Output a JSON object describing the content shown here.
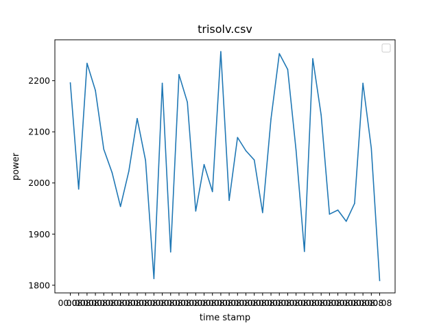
{
  "chart_data": {
    "type": "line",
    "title": "trisolv.csv",
    "xlabel": "time stamp",
    "ylabel": "power",
    "ylim": [
      1785,
      2280
    ],
    "yticks": [
      1800,
      1900,
      2000,
      2100,
      2200
    ],
    "grid": false,
    "legend": "top-right",
    "xtick_labels": [
      "00:08",
      "00:08",
      "00:08",
      "00:08",
      "00:08",
      "00:08",
      "00:08",
      "00:08",
      "00:08",
      "00:08",
      "00:08",
      "00:08",
      "00:08",
      "00:08",
      "00:08",
      "00:08",
      "00:08",
      "00:08",
      "00:08",
      "00:08",
      "00:08",
      "00:08",
      "00:08",
      "00:08",
      "00:08",
      "00:08",
      "00:08",
      "00:08",
      "00:08",
      "00:08",
      "00:08",
      "00:08",
      "00:08",
      "00:08",
      "00:08",
      "00:08",
      "00:08",
      "00:08"
    ],
    "series": [
      {
        "color": "#1f77b4",
        "values": [
          2196,
          1988,
          2234,
          2181,
          2066,
          2020,
          1954,
          2023,
          2126,
          2044,
          1813,
          2195,
          1865,
          2212,
          2158,
          1945,
          2036,
          1983,
          2257,
          1966,
          2089,
          2063,
          2045,
          1942,
          2125,
          2253,
          2222,
          2064,
          1866,
          2243,
          2133,
          1939,
          1947,
          1925,
          1960,
          2195,
          2068,
          1809
        ]
      }
    ]
  }
}
